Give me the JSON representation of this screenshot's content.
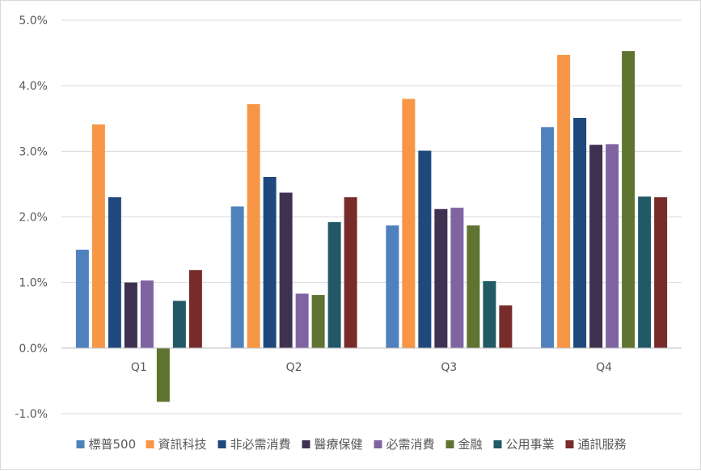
{
  "chart_data": {
    "type": "bar",
    "title": "",
    "xlabel": "",
    "ylabel": "",
    "categories": [
      "Q1",
      "Q2",
      "Q3",
      "Q4"
    ],
    "ylim": [
      -1.0,
      5.0
    ],
    "yticks": [
      -1.0,
      0.0,
      1.0,
      2.0,
      3.0,
      4.0,
      5.0
    ],
    "ytick_labels": [
      "-1.0%",
      "0.0%",
      "1.0%",
      "2.0%",
      "3.0%",
      "4.0%",
      "5.0%"
    ],
    "grid": true,
    "legend_position": "bottom",
    "series": [
      {
        "name": "標普500",
        "color": "#4F81BD",
        "values": [
          1.5,
          2.16,
          1.87,
          3.37
        ]
      },
      {
        "name": "資訊科技",
        "color": "#F79646",
        "values": [
          3.41,
          3.72,
          3.8,
          4.47
        ]
      },
      {
        "name": "非必需消費",
        "color": "#1F497D",
        "values": [
          2.3,
          2.61,
          3.01,
          3.51
        ]
      },
      {
        "name": "醫療保健",
        "color": "#3F3151",
        "values": [
          1.0,
          2.37,
          2.12,
          3.1
        ]
      },
      {
        "name": "必需消費",
        "color": "#8064A2",
        "values": [
          1.03,
          0.83,
          2.14,
          3.11
        ]
      },
      {
        "name": "金融",
        "color": "#5E7430",
        "values": [
          -0.82,
          0.81,
          1.87,
          4.53
        ]
      },
      {
        "name": "公用事業",
        "color": "#215967",
        "values": [
          0.72,
          1.92,
          1.02,
          2.31
        ]
      },
      {
        "name": "通訊服務",
        "color": "#772C2A",
        "values": [
          1.19,
          2.3,
          0.65,
          2.3
        ]
      }
    ]
  }
}
